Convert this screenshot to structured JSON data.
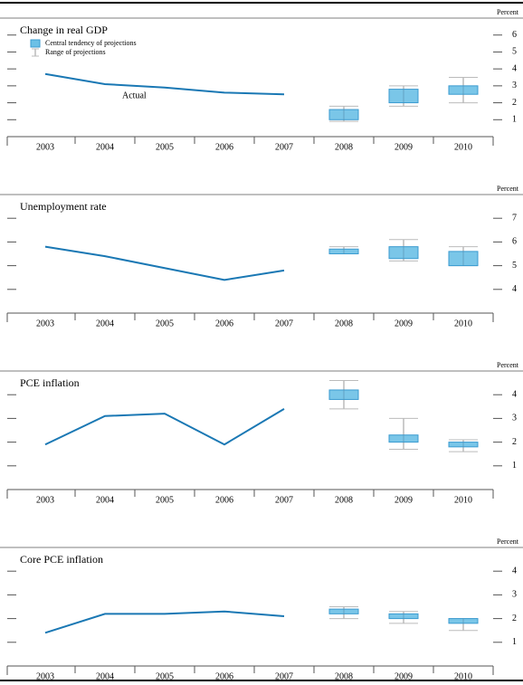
{
  "chart_data": [
    {
      "type": "line",
      "title": "Change in real GDP",
      "ylabel": "Percent",
      "legend": [
        "Central tendency of projections",
        "Range of projections"
      ],
      "annotation": "Actual",
      "categories": [
        "2003",
        "2004",
        "2005",
        "2006",
        "2007",
        "2008",
        "2009",
        "2010"
      ],
      "actual": [
        3.7,
        3.1,
        2.9,
        2.6,
        2.5,
        null,
        null,
        null
      ],
      "central_low": [
        null,
        null,
        null,
        null,
        null,
        1.0,
        2.0,
        2.5
      ],
      "central_high": [
        null,
        null,
        null,
        null,
        null,
        1.6,
        2.8,
        3.0
      ],
      "range_low": [
        null,
        null,
        null,
        null,
        null,
        0.9,
        1.8,
        2.0
      ],
      "range_high": [
        null,
        null,
        null,
        null,
        null,
        1.8,
        3.0,
        3.5
      ],
      "line_color": "#1a78b4",
      "box_color": "#6cc0e6",
      "ylim": [
        0,
        7
      ],
      "yticks": [
        1,
        2,
        3,
        4,
        5,
        6
      ]
    },
    {
      "type": "line",
      "title": "Unemployment rate",
      "ylabel": "Percent",
      "categories": [
        "2003",
        "2004",
        "2005",
        "2006",
        "2007",
        "2008",
        "2009",
        "2010"
      ],
      "actual": [
        5.8,
        5.4,
        4.9,
        4.4,
        4.8,
        null,
        null,
        null
      ],
      "central_low": [
        null,
        null,
        null,
        null,
        null,
        5.5,
        5.3,
        5.0
      ],
      "central_high": [
        null,
        null,
        null,
        null,
        null,
        5.7,
        5.8,
        5.6
      ],
      "range_low": [
        null,
        null,
        null,
        null,
        null,
        5.5,
        5.2,
        5.0
      ],
      "range_high": [
        null,
        null,
        null,
        null,
        null,
        5.8,
        6.1,
        5.8
      ],
      "line_color": "#1a78b4",
      "box_color": "#6cc0e6",
      "ylim": [
        3,
        8
      ],
      "yticks": [
        4,
        5,
        6,
        7
      ]
    },
    {
      "type": "line",
      "title": "PCE inflation",
      "ylabel": "Percent",
      "categories": [
        "2003",
        "2004",
        "2005",
        "2006",
        "2007",
        "2008",
        "2009",
        "2010"
      ],
      "actual": [
        1.9,
        3.1,
        3.2,
        1.9,
        3.4,
        null,
        null,
        null
      ],
      "central_low": [
        null,
        null,
        null,
        null,
        null,
        3.8,
        2.0,
        1.8
      ],
      "central_high": [
        null,
        null,
        null,
        null,
        null,
        4.2,
        2.3,
        2.0
      ],
      "range_low": [
        null,
        null,
        null,
        null,
        null,
        3.4,
        1.7,
        1.6
      ],
      "range_high": [
        null,
        null,
        null,
        null,
        null,
        4.6,
        3.0,
        2.1
      ],
      "line_color": "#1a78b4",
      "box_color": "#6cc0e6",
      "ylim": [
        0,
        5
      ],
      "yticks": [
        1,
        2,
        3,
        4
      ]
    },
    {
      "type": "line",
      "title": "Core PCE inflation",
      "ylabel": "Percent",
      "categories": [
        "2003",
        "2004",
        "2005",
        "2006",
        "2007",
        "2008",
        "2009",
        "2010"
      ],
      "actual": [
        1.4,
        2.2,
        2.2,
        2.3,
        2.1,
        null,
        null,
        null
      ],
      "central_low": [
        null,
        null,
        null,
        null,
        null,
        2.2,
        2.0,
        1.8
      ],
      "central_high": [
        null,
        null,
        null,
        null,
        null,
        2.4,
        2.2,
        2.0
      ],
      "range_low": [
        null,
        null,
        null,
        null,
        null,
        2.0,
        1.8,
        1.5
      ],
      "range_high": [
        null,
        null,
        null,
        null,
        null,
        2.5,
        2.3,
        2.0
      ],
      "line_color": "#1a78b4",
      "box_color": "#6cc0e6",
      "ylim": [
        0,
        5
      ],
      "yticks": [
        1,
        2,
        3,
        4
      ]
    }
  ]
}
